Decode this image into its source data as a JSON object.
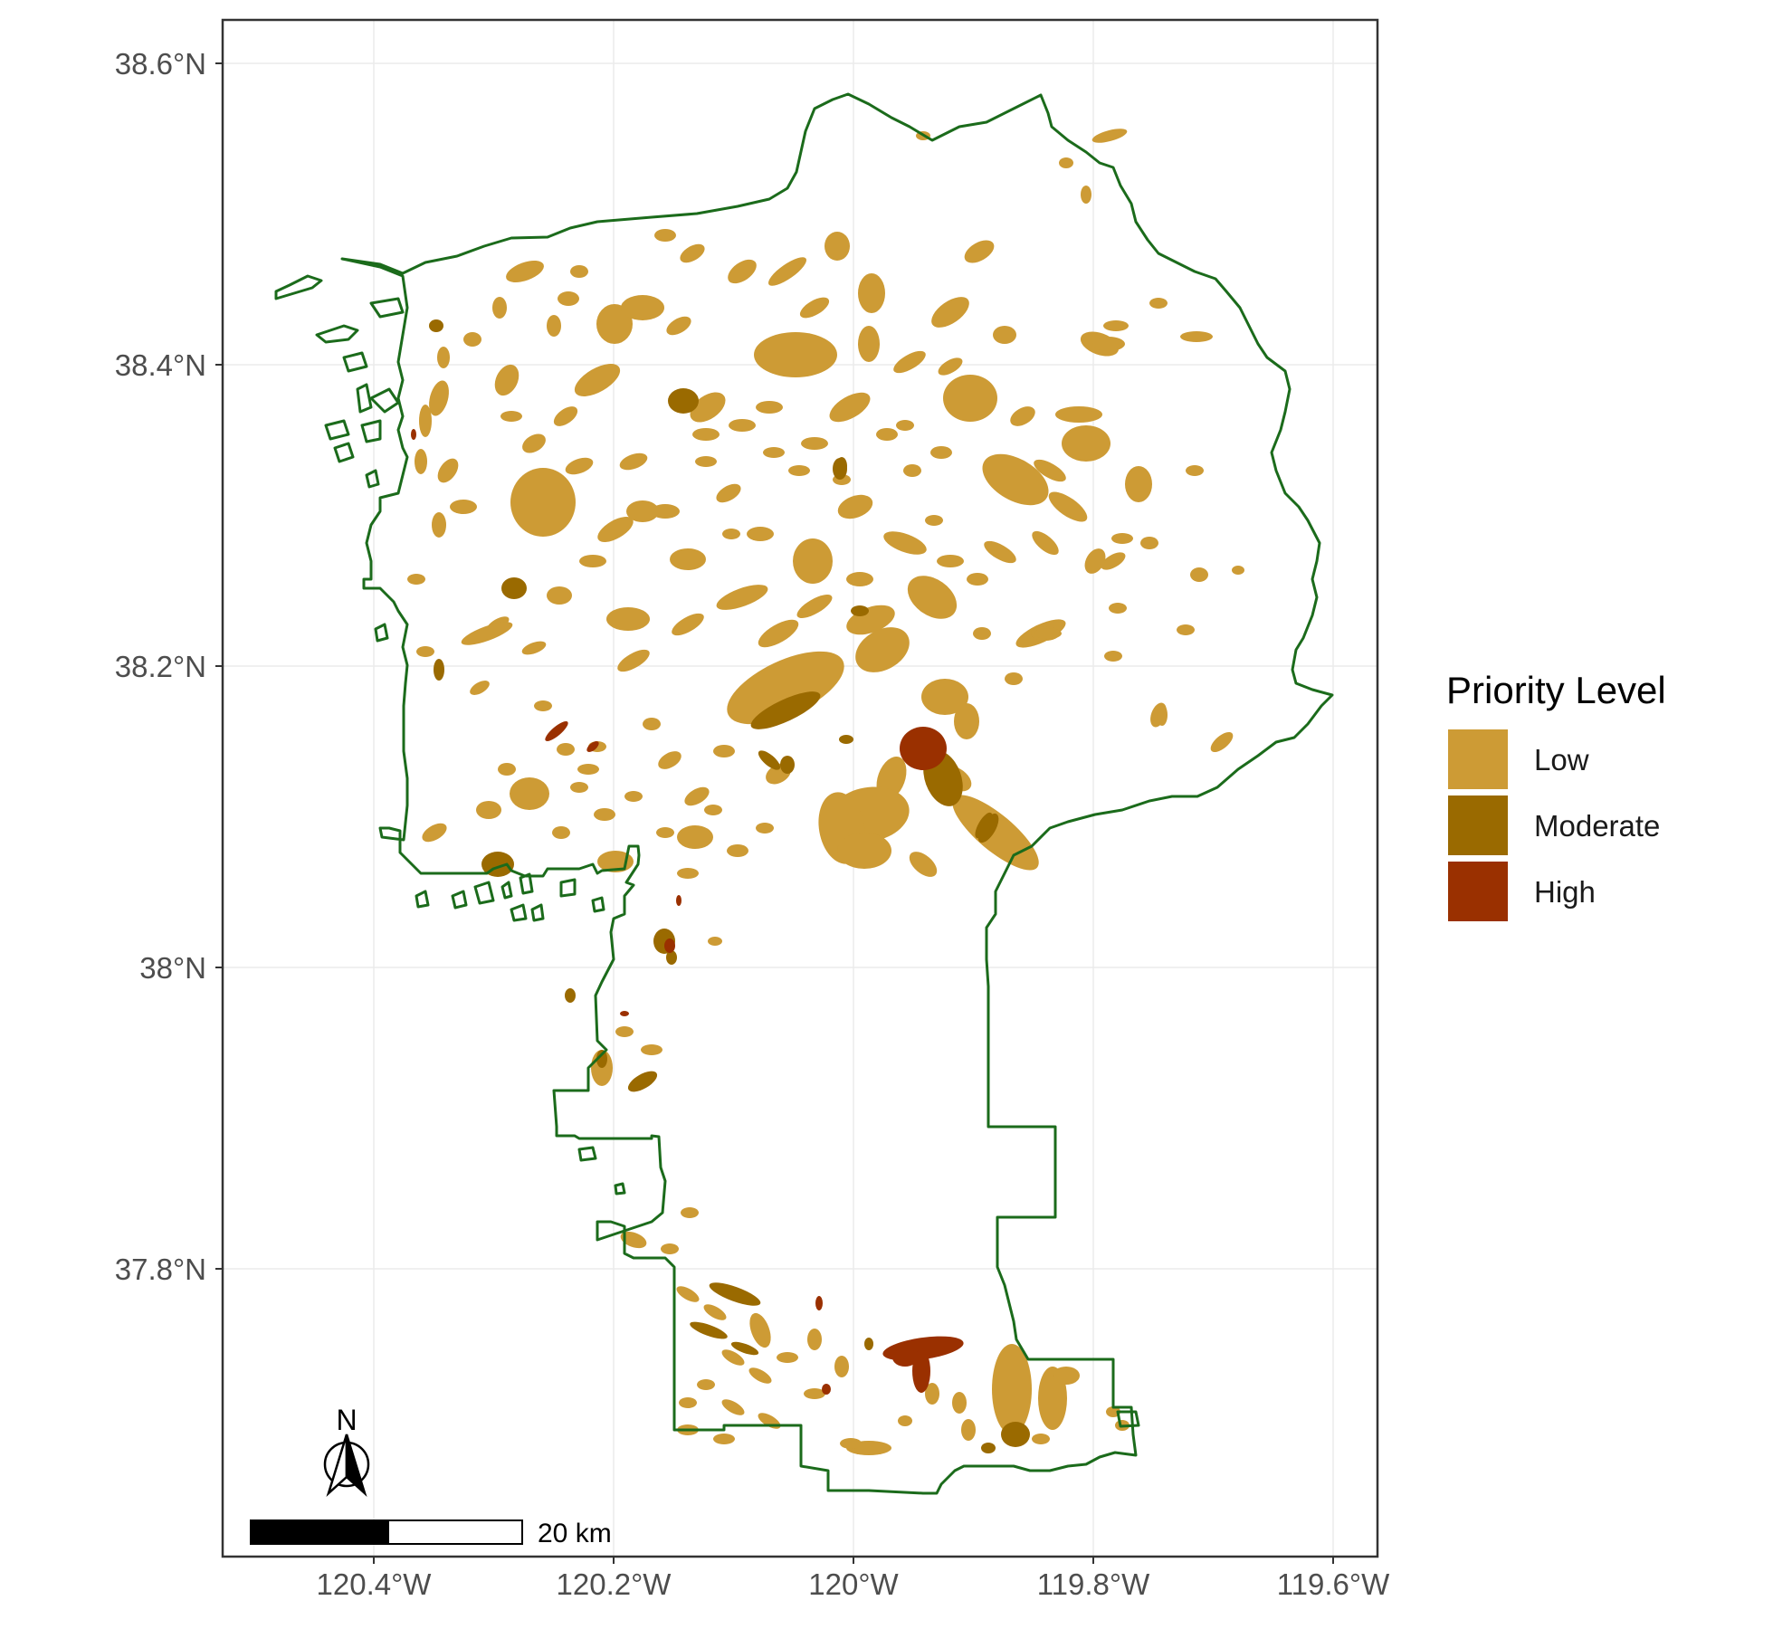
{
  "map": {
    "y_ticks": [
      "38.6°N",
      "38.4°N",
      "38.2°N",
      "38°N",
      "37.8°N"
    ],
    "x_ticks": [
      "120.4°W",
      "120.2°W",
      "120°W",
      "119.8°W",
      "119.6°W"
    ],
    "grid": true
  },
  "legend": {
    "title": "Priority Level",
    "items": [
      {
        "label": "Low",
        "color": "#CD9B35"
      },
      {
        "label": "Moderate",
        "color": "#9A6A00"
      },
      {
        "label": "High",
        "color": "#9A3000"
      }
    ]
  },
  "scale_bar": {
    "label": "20 km"
  },
  "north_arrow": {
    "label": "N"
  },
  "colors": {
    "boundary": "#1B6B1B",
    "panel_border": "#333333",
    "grid": "#EBEBEB",
    "low": "#CD9B35",
    "moderate": "#9A6A00",
    "high": "#9A3000"
  }
}
